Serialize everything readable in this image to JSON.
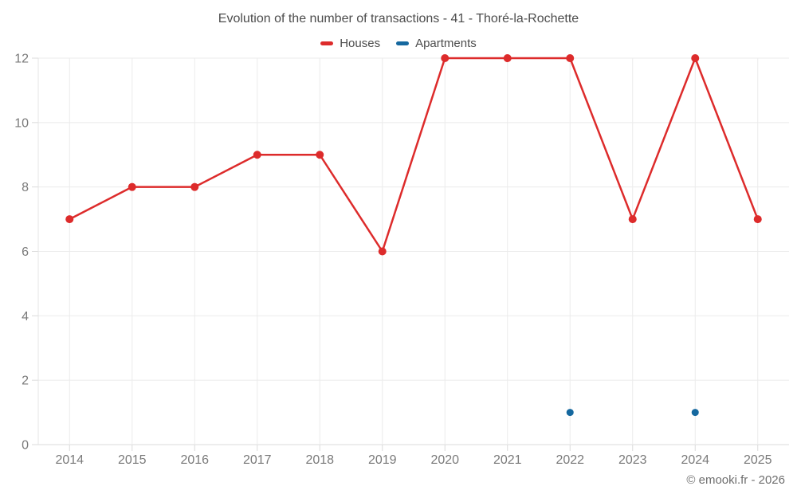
{
  "footer": "© emooki.fr - 2026",
  "chart_data": {
    "type": "line",
    "title": "Evolution of the number of transactions - 41 - Thoré-la-Rochette",
    "categories": [
      "2014",
      "2015",
      "2016",
      "2017",
      "2018",
      "2019",
      "2020",
      "2021",
      "2022",
      "2023",
      "2024",
      "2025"
    ],
    "series": [
      {
        "name": "Houses",
        "color": "#dd2b2b",
        "style": "line-with-points",
        "values": [
          7,
          8,
          8,
          9,
          9,
          6,
          12,
          12,
          12,
          7,
          12,
          7
        ]
      },
      {
        "name": "Apartments",
        "color": "#15689f",
        "style": "points-only",
        "values": [
          null,
          null,
          null,
          null,
          null,
          null,
          null,
          null,
          1,
          null,
          1,
          null
        ]
      }
    ],
    "xlabel": "",
    "ylabel": "",
    "ylim": [
      0,
      12
    ],
    "yticks": [
      0,
      2,
      4,
      6,
      8,
      10,
      12
    ],
    "grid": true,
    "legend_position": "top"
  }
}
